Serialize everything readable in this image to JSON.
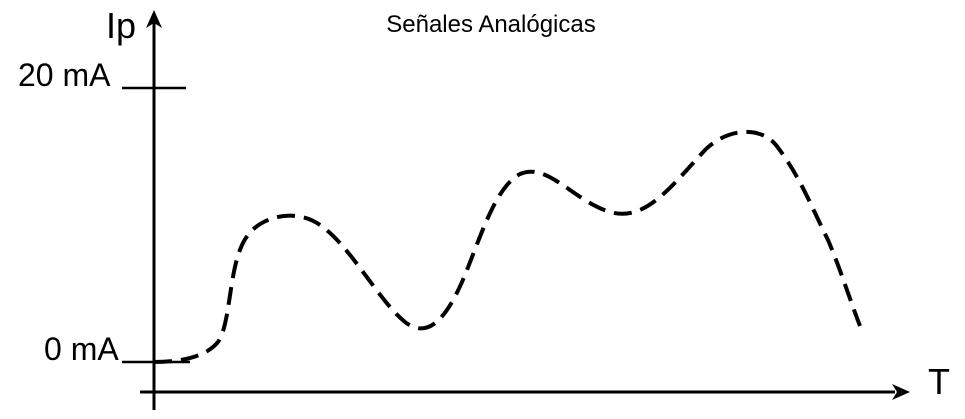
{
  "title": "Señales Analógicas",
  "axes": {
    "y_label": "Ip",
    "x_label": "T",
    "y_tick_top": "20 mA",
    "y_tick_bottom": "0 mA"
  },
  "colors": {
    "line": "#000000",
    "background": "#ffffff"
  },
  "signal": {
    "style": "dashed",
    "shape": "analog-wave"
  }
}
